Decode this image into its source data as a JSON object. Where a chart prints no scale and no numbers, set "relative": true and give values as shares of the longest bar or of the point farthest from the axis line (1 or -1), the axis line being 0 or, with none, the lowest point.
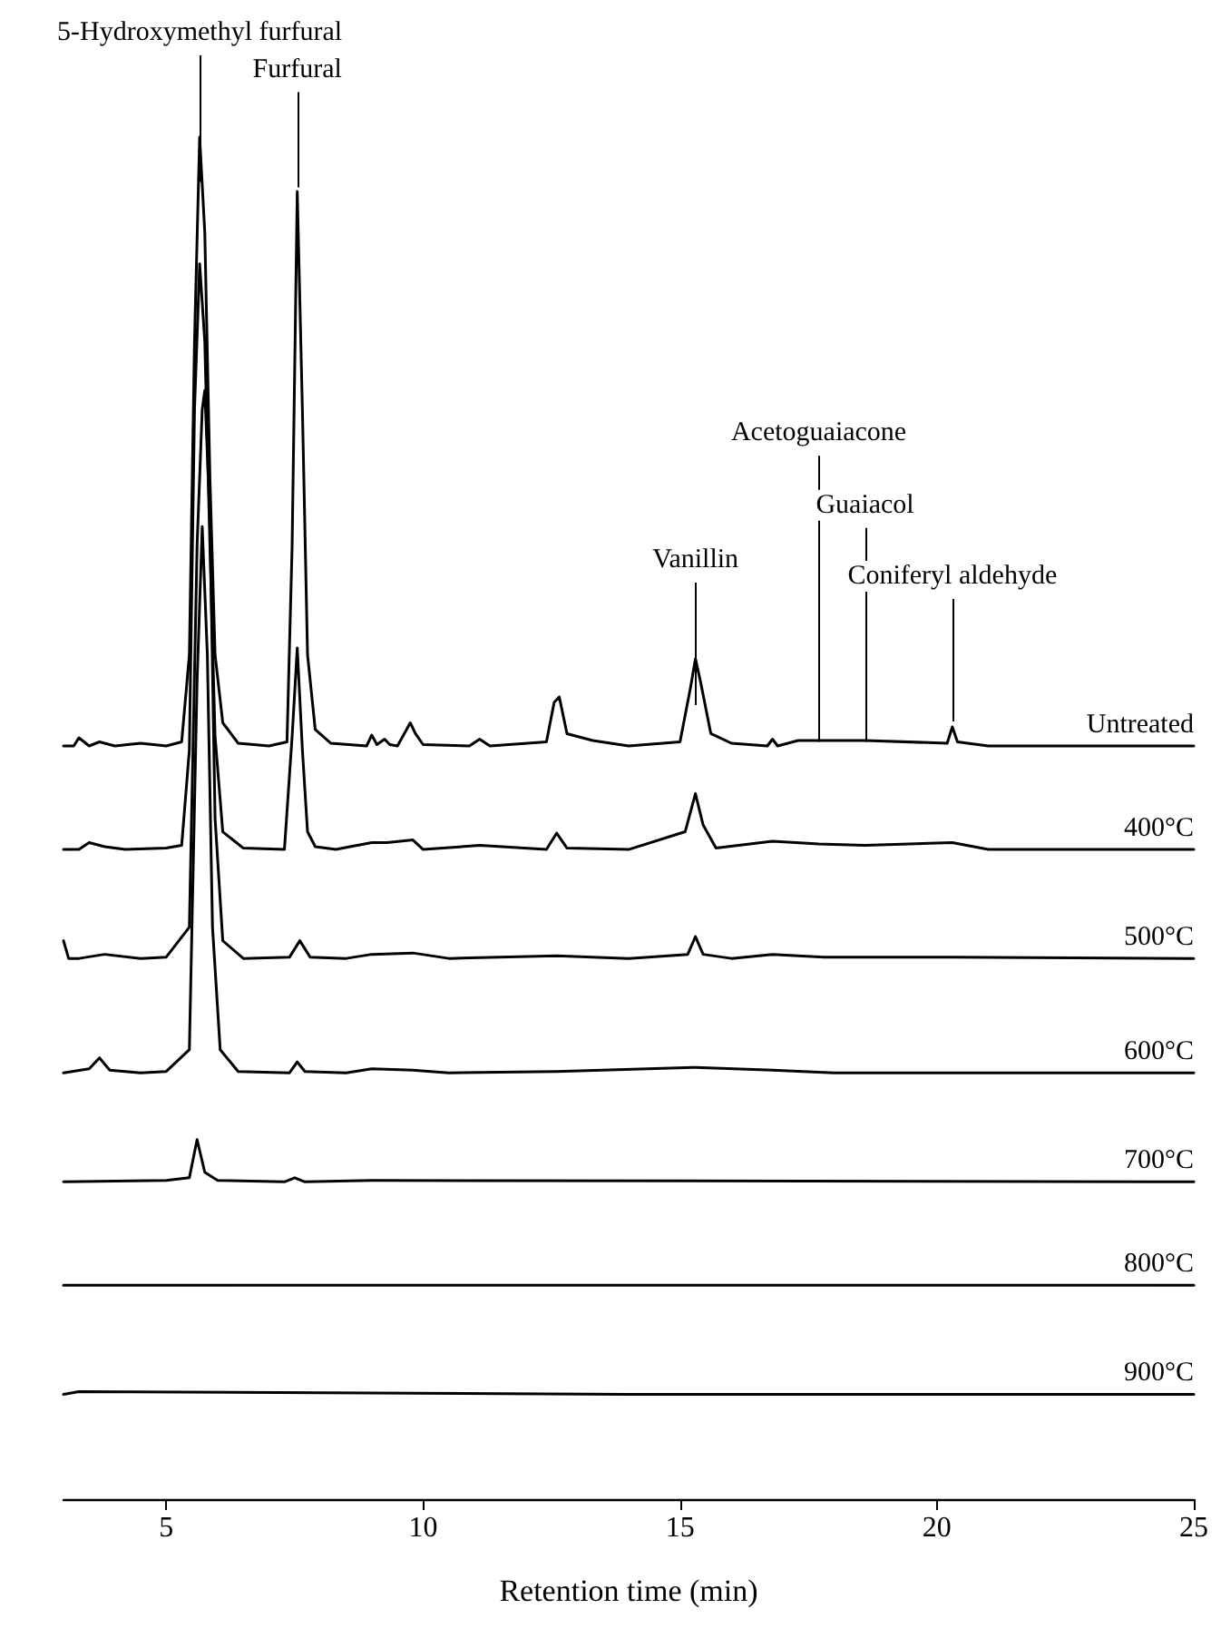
{
  "chart_data": {
    "type": "line",
    "relative": true,
    "xlabel": "Retention time (min)",
    "xlim": [
      3,
      25
    ],
    "xticks": [
      5,
      10,
      15,
      20,
      25
    ],
    "grid": false,
    "legend": false,
    "marker": "none",
    "line_style": "solid",
    "annotations": [
      {
        "text": "5-Hydroxymethyl furfural",
        "x": 5.65,
        "y": 0.967
      },
      {
        "text": "Furfural",
        "x": 7.55,
        "y": 0.963
      },
      {
        "text": "Vanillin",
        "x": 15.3,
        "y": 0.583
      },
      {
        "text": "Acetoguaiacone",
        "x": 17.7,
        "y": 0.556
      },
      {
        "text": "Guaiacol",
        "x": 18.6,
        "y": 0.556
      },
      {
        "text": "Coniferyl aldehyde",
        "x": 20.3,
        "y": 0.571
      }
    ],
    "series": [
      {
        "name": "Untreated",
        "color": "#000000",
        "x": [
          3.0,
          3.2,
          3.3,
          3.5,
          3.7,
          4.0,
          4.5,
          5.0,
          5.3,
          5.45,
          5.55,
          5.65,
          5.75,
          5.85,
          5.95,
          6.1,
          6.4,
          7.0,
          7.35,
          7.45,
          7.55,
          7.65,
          7.75,
          7.9,
          8.2,
          8.9,
          9.0,
          9.1,
          9.25,
          9.35,
          9.5,
          9.75,
          9.85,
          10.0,
          10.9,
          11.1,
          11.3,
          12.4,
          12.55,
          12.65,
          12.8,
          13.3,
          14.0,
          15.0,
          15.2,
          15.3,
          15.4,
          15.6,
          16.0,
          16.7,
          16.8,
          16.9,
          17.3,
          17.7,
          18.6,
          20.2,
          20.3,
          20.4,
          21.0,
          23.0,
          25.0
        ],
        "values": [
          0.553,
          0.553,
          0.559,
          0.553,
          0.556,
          0.553,
          0.555,
          0.553,
          0.556,
          0.62,
          0.85,
          1.0,
          0.93,
          0.75,
          0.62,
          0.57,
          0.555,
          0.553,
          0.556,
          0.7,
          0.96,
          0.8,
          0.62,
          0.565,
          0.555,
          0.553,
          0.561,
          0.554,
          0.558,
          0.554,
          0.553,
          0.57,
          0.562,
          0.554,
          0.553,
          0.558,
          0.553,
          0.556,
          0.585,
          0.589,
          0.562,
          0.557,
          0.553,
          0.556,
          0.595,
          0.617,
          0.6,
          0.562,
          0.555,
          0.553,
          0.558,
          0.553,
          0.557,
          0.557,
          0.557,
          0.555,
          0.567,
          0.556,
          0.553,
          0.553,
          0.553
        ]
      },
      {
        "name": "400°C",
        "color": "#000000",
        "x": [
          3.0,
          3.3,
          3.5,
          3.8,
          4.2,
          5.0,
          5.3,
          5.45,
          5.55,
          5.65,
          5.75,
          5.85,
          5.95,
          6.1,
          6.5,
          7.3,
          7.45,
          7.55,
          7.65,
          7.75,
          7.9,
          8.3,
          9.0,
          9.3,
          9.8,
          10.0,
          11.1,
          12.4,
          12.6,
          12.8,
          14.0,
          15.1,
          15.3,
          15.45,
          15.7,
          16.8,
          17.7,
          18.6,
          20.3,
          21.0,
          25.0
        ],
        "values": [
          0.477,
          0.477,
          0.482,
          0.479,
          0.477,
          0.478,
          0.48,
          0.55,
          0.8,
          0.907,
          0.85,
          0.7,
          0.56,
          0.49,
          0.478,
          0.477,
          0.56,
          0.625,
          0.55,
          0.49,
          0.479,
          0.477,
          0.482,
          0.482,
          0.484,
          0.477,
          0.48,
          0.477,
          0.489,
          0.478,
          0.477,
          0.49,
          0.518,
          0.495,
          0.478,
          0.483,
          0.481,
          0.48,
          0.482,
          0.477,
          0.477
        ]
      },
      {
        "name": "500°C",
        "color": "#000000",
        "x": [
          3.0,
          3.1,
          3.3,
          3.8,
          4.5,
          5.0,
          5.45,
          5.6,
          5.7,
          5.75,
          5.85,
          5.95,
          6.1,
          6.5,
          7.4,
          7.6,
          7.8,
          8.5,
          9.0,
          9.8,
          10.5,
          12.6,
          14.0,
          15.15,
          15.3,
          15.45,
          16.0,
          16.8,
          17.8,
          20.3,
          25.0
        ],
        "values": [
          0.41,
          0.397,
          0.397,
          0.4,
          0.397,
          0.398,
          0.42,
          0.7,
          0.8,
          0.814,
          0.72,
          0.5,
          0.41,
          0.397,
          0.398,
          0.41,
          0.398,
          0.397,
          0.4,
          0.401,
          0.397,
          0.399,
          0.397,
          0.4,
          0.413,
          0.4,
          0.397,
          0.4,
          0.398,
          0.398,
          0.397
        ]
      },
      {
        "name": "600°C",
        "color": "#000000",
        "x": [
          3.0,
          3.5,
          3.7,
          3.9,
          4.5,
          5.0,
          5.45,
          5.6,
          5.7,
          5.8,
          5.9,
          6.05,
          6.4,
          7.4,
          7.55,
          7.7,
          8.5,
          9.0,
          9.8,
          10.5,
          12.6,
          15.3,
          16.8,
          18.0,
          25.0
        ],
        "values": [
          0.313,
          0.316,
          0.324,
          0.315,
          0.313,
          0.314,
          0.33,
          0.6,
          0.714,
          0.62,
          0.42,
          0.33,
          0.314,
          0.313,
          0.321,
          0.314,
          0.313,
          0.316,
          0.315,
          0.313,
          0.314,
          0.317,
          0.315,
          0.313,
          0.313
        ]
      },
      {
        "name": "700°C",
        "color": "#000000",
        "x": [
          3.0,
          5.0,
          5.45,
          5.6,
          5.75,
          6.0,
          7.3,
          7.5,
          7.7,
          9.0,
          25.0
        ],
        "values": [
          0.233,
          0.234,
          0.236,
          0.264,
          0.24,
          0.234,
          0.233,
          0.236,
          0.233,
          0.234,
          0.233
        ]
      },
      {
        "name": "800°C",
        "color": "#000000",
        "x": [
          3.0,
          14.0,
          25.0
        ],
        "values": [
          0.157,
          0.157,
          0.157
        ]
      },
      {
        "name": "900°C",
        "color": "#000000",
        "x": [
          3.0,
          3.3,
          14.0,
          25.0
        ],
        "values": [
          0.077,
          0.079,
          0.077,
          0.077
        ]
      }
    ]
  }
}
